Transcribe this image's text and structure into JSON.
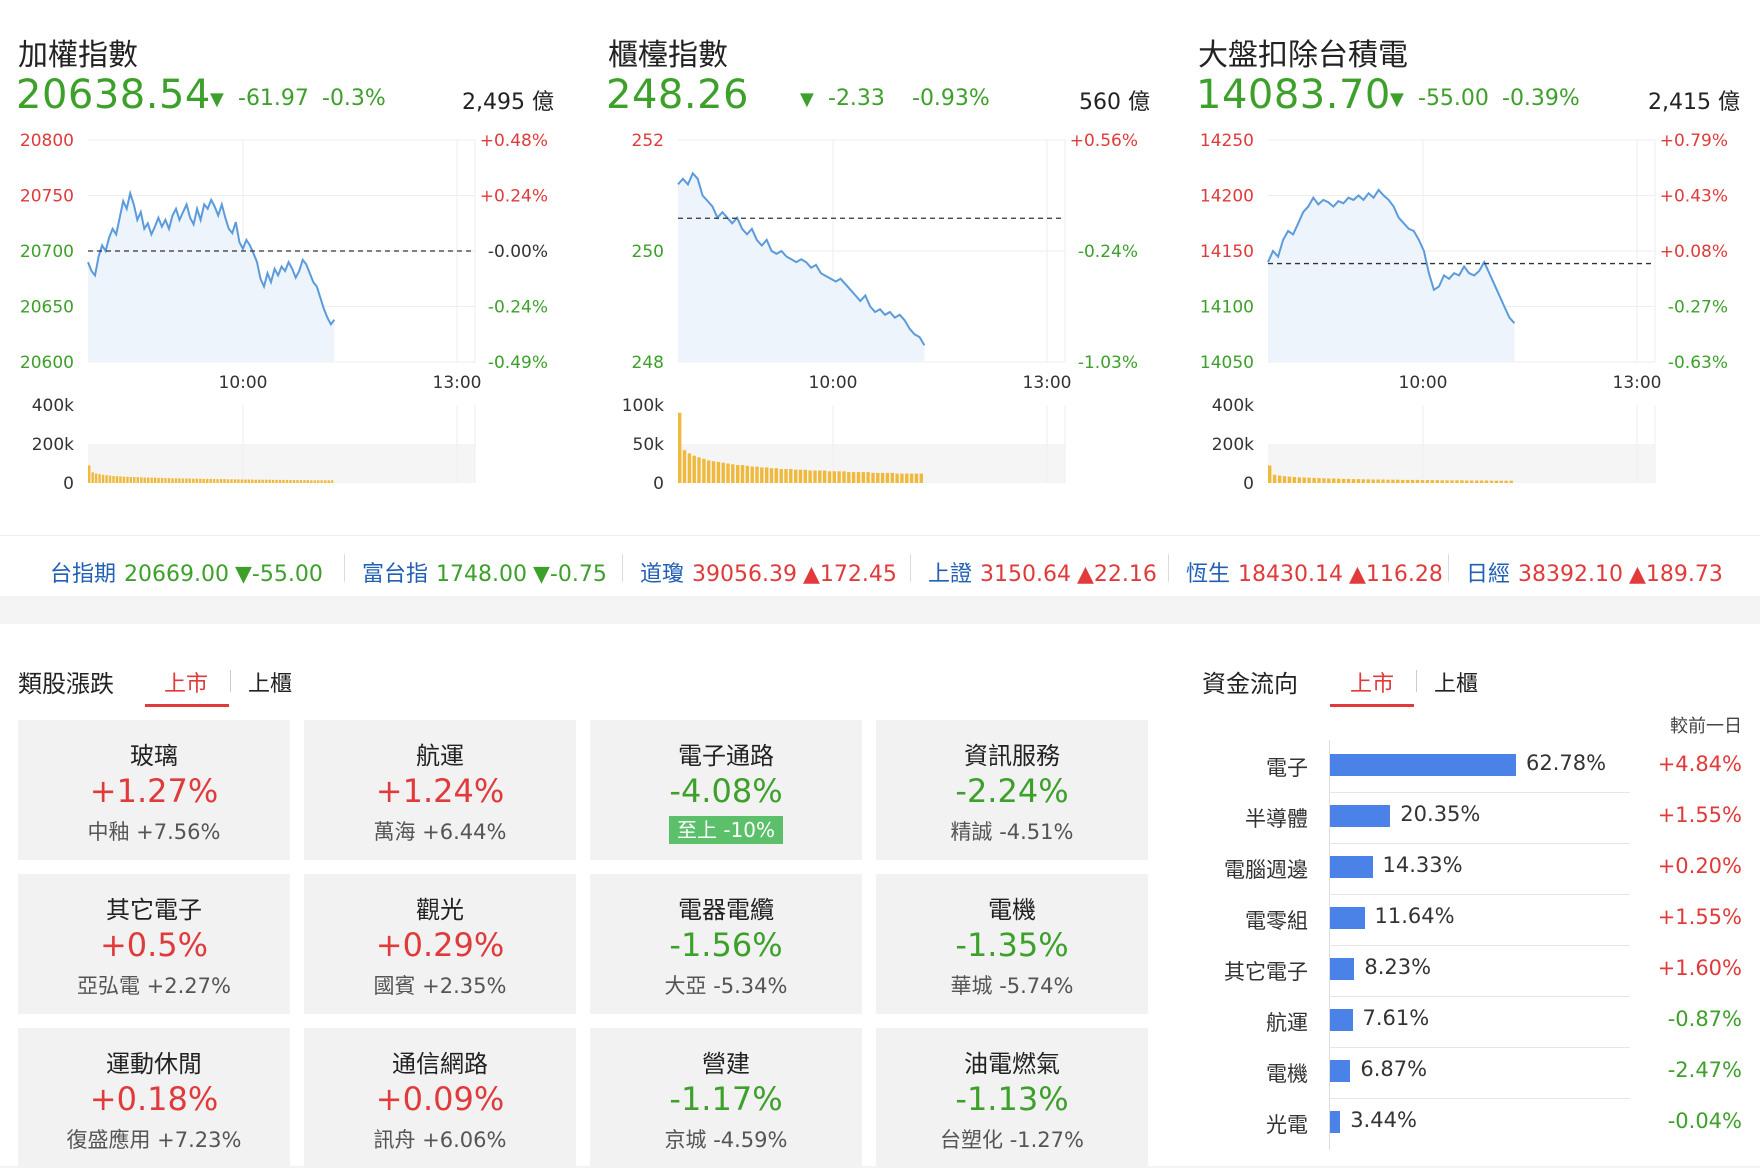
{
  "panels": [
    {
      "title": "加權指數",
      "value": "20638.54",
      "change": "-61.97",
      "pct": "-0.3%",
      "volume": "2,495 億",
      "y_labels": [
        "20800",
        "20750",
        "20700",
        "20650",
        "20600"
      ],
      "pct_labels": [
        "+0.48%",
        "+0.24%",
        "-0.00%",
        "-0.24%",
        "-0.49%"
      ],
      "time_labels": [
        "10:00",
        "13:00"
      ],
      "vol_labels": [
        "400k",
        "200k",
        "0"
      ],
      "chart_data": {
        "type": "line",
        "ylim": [
          20600,
          20800
        ],
        "prev_close": 20700,
        "vol_max": 400,
        "values": [
          20690,
          20682,
          20678,
          20695,
          20705,
          20700,
          20712,
          20720,
          20715,
          20730,
          20745,
          20738,
          20752,
          20742,
          20728,
          20735,
          20720,
          20725,
          20715,
          20722,
          20730,
          20722,
          20728,
          20720,
          20732,
          20738,
          20728,
          20735,
          20742,
          20730,
          20724,
          20738,
          20728,
          20742,
          20738,
          20746,
          20740,
          20732,
          20742,
          20730,
          20720,
          20716,
          20726,
          20708,
          20702,
          20710,
          20705,
          20698,
          20690,
          20675,
          20668,
          20680,
          20672,
          20684,
          20678,
          20686,
          20682,
          20690,
          20684,
          20676,
          20682,
          20692,
          20688,
          20680,
          20672,
          20668,
          20658,
          20648,
          20640,
          20634,
          20638
        ],
        "volumes": [
          90,
          55,
          48,
          45,
          42,
          40,
          38,
          36,
          35,
          34,
          33,
          32,
          31,
          30,
          30,
          29,
          28,
          28,
          27,
          27,
          26,
          26,
          25,
          25,
          24,
          24,
          24,
          23,
          23,
          23,
          22,
          22,
          22,
          21,
          21,
          21,
          20,
          20,
          20,
          20,
          19,
          19,
          19,
          19,
          18,
          18,
          18,
          18,
          17,
          17,
          17,
          17,
          17,
          16,
          16,
          16,
          16,
          16,
          15,
          15,
          15,
          15,
          15,
          15,
          14,
          14,
          14,
          14,
          14,
          14,
          14
        ]
      }
    },
    {
      "title": "櫃檯指數",
      "value": "248.26",
      "change": "-2.33",
      "pct": "-0.93%",
      "volume": "560 億",
      "y_labels": [
        "252",
        "250",
        "248"
      ],
      "pct_labels": [
        "+0.56%",
        "-0.24%",
        "-1.03%"
      ],
      "time_labels": [
        "10:00",
        "13:00"
      ],
      "vol_labels": [
        "100k",
        "50k",
        "0"
      ],
      "chart_data": {
        "type": "line",
        "ylim": [
          248,
          252
        ],
        "prev_close": 250.59,
        "vol_max": 100,
        "values": [
          251.2,
          251.3,
          251.2,
          251.4,
          251.3,
          251.0,
          250.9,
          250.8,
          250.6,
          250.7,
          250.6,
          250.5,
          250.6,
          250.4,
          250.3,
          250.4,
          250.2,
          250.1,
          250.2,
          250.0,
          249.95,
          250.0,
          249.9,
          249.85,
          249.8,
          249.85,
          249.8,
          249.7,
          249.75,
          249.6,
          249.55,
          249.5,
          249.45,
          249.5,
          249.4,
          249.3,
          249.2,
          249.1,
          249.2,
          249.0,
          248.9,
          248.95,
          248.85,
          248.9,
          248.8,
          248.85,
          248.75,
          248.6,
          248.5,
          248.45,
          248.3
        ],
        "volumes": [
          90,
          42,
          38,
          35,
          33,
          31,
          29,
          28,
          27,
          26,
          25,
          24,
          23,
          23,
          22,
          21,
          21,
          20,
          20,
          19,
          19,
          18,
          18,
          18,
          17,
          17,
          17,
          16,
          16,
          16,
          16,
          15,
          15,
          15,
          15,
          14,
          14,
          14,
          14,
          14,
          13,
          13,
          13,
          13,
          13,
          12,
          12,
          12,
          12,
          12,
          12
        ]
      }
    },
    {
      "title": "大盤扣除台積電",
      "value": "14083.70",
      "change": "-55.00",
      "pct": "-0.39%",
      "volume": "2,415 億",
      "y_labels": [
        "14250",
        "14200",
        "14150",
        "14100",
        "14050"
      ],
      "pct_labels": [
        "+0.79%",
        "+0.43%",
        "+0.08%",
        "-0.27%",
        "-0.63%"
      ],
      "time_labels": [
        "10:00",
        "13:00"
      ],
      "vol_labels": [
        "400k",
        "200k",
        "0"
      ],
      "chart_data": {
        "type": "line",
        "ylim": [
          14050,
          14250
        ],
        "prev_close": 14138.7,
        "vol_max": 400,
        "values": [
          14140,
          14150,
          14145,
          14160,
          14168,
          14165,
          14175,
          14185,
          14190,
          14198,
          14192,
          14196,
          14194,
          14190,
          14195,
          14193,
          14198,
          14196,
          14200,
          14196,
          14202,
          14198,
          14205,
          14200,
          14196,
          14190,
          14180,
          14175,
          14170,
          14168,
          14160,
          14150,
          14130,
          14115,
          14118,
          14128,
          14125,
          14130,
          14128,
          14136,
          14130,
          14128,
          14132,
          14140,
          14130,
          14120,
          14110,
          14100,
          14090,
          14085
        ],
        "volumes": [
          90,
          42,
          38,
          35,
          33,
          31,
          29,
          28,
          27,
          26,
          25,
          24,
          23,
          23,
          22,
          21,
          21,
          20,
          20,
          19,
          19,
          18,
          18,
          18,
          17,
          17,
          17,
          16,
          16,
          16,
          16,
          15,
          15,
          15,
          15,
          14,
          14,
          14,
          14,
          14,
          13,
          13,
          13,
          13,
          13,
          12,
          12,
          12,
          12,
          12
        ]
      }
    }
  ],
  "ticker": [
    {
      "name": "台指期",
      "value": "20669.00",
      "change": "▼-55.00",
      "dir": "dn"
    },
    {
      "name": "富台指",
      "value": "1748.00",
      "change": "▼-0.75",
      "dir": "dn"
    },
    {
      "name": "道瓊",
      "value": "39056.39",
      "change": "▲172.45",
      "dir": "up"
    },
    {
      "name": "上證",
      "value": "3150.64",
      "change": "▲22.16",
      "dir": "up"
    },
    {
      "name": "恆生",
      "value": "18430.14",
      "change": "▲116.28",
      "dir": "up"
    },
    {
      "name": "日經",
      "value": "38392.10",
      "change": "▲189.73",
      "dir": "up"
    }
  ],
  "sector": {
    "title": "類股漲跌",
    "tabs": [
      "上市",
      "上櫃"
    ],
    "cells": [
      {
        "name": "玻璃",
        "pct": "+1.27%",
        "dir": "up",
        "sub": "中釉 +7.56%"
      },
      {
        "name": "航運",
        "pct": "+1.24%",
        "dir": "up",
        "sub": "萬海 +6.44%"
      },
      {
        "name": "電子通路",
        "pct": "-4.08%",
        "dir": "dn",
        "badge": "至上 -10%"
      },
      {
        "name": "資訊服務",
        "pct": "-2.24%",
        "dir": "dn",
        "sub": "精誠 -4.51%"
      },
      {
        "name": "其它電子",
        "pct": "+0.5%",
        "dir": "up",
        "sub": "亞弘電 +2.27%"
      },
      {
        "name": "觀光",
        "pct": "+0.29%",
        "dir": "up",
        "sub": "國賓 +2.35%"
      },
      {
        "name": "電器電纜",
        "pct": "-1.56%",
        "dir": "dn",
        "sub": "大亞 -5.34%"
      },
      {
        "name": "電機",
        "pct": "-1.35%",
        "dir": "dn",
        "sub": "華城 -5.74%"
      },
      {
        "name": "運動休閒",
        "pct": "+0.18%",
        "dir": "up",
        "sub": "復盛應用 +7.23%"
      },
      {
        "name": "通信網路",
        "pct": "+0.09%",
        "dir": "up",
        "sub": "訊舟 +6.06%"
      },
      {
        "name": "營建",
        "pct": "-1.17%",
        "dir": "dn",
        "sub": "京城 -4.59%"
      },
      {
        "name": "油電燃氣",
        "pct": "-1.13%",
        "dir": "dn",
        "sub": "台塑化 -1.27%"
      }
    ]
  },
  "fund_flow": {
    "title": "資金流向",
    "tabs": [
      "上市",
      "上櫃"
    ],
    "header": "較前一日",
    "chart_data": {
      "type": "bar",
      "xlim": [
        0,
        62.78
      ],
      "rows": [
        {
          "name": "電子",
          "value": 62.78,
          "label": "62.78%",
          "change": "+4.84%",
          "dir": "up"
        },
        {
          "name": "半導體",
          "value": 20.35,
          "label": "20.35%",
          "change": "+1.55%",
          "dir": "up"
        },
        {
          "name": "電腦週邊",
          "value": 14.33,
          "label": "14.33%",
          "change": "+0.20%",
          "dir": "up"
        },
        {
          "name": "電零組",
          "value": 11.64,
          "label": "11.64%",
          "change": "+1.55%",
          "dir": "up"
        },
        {
          "name": "其它電子",
          "value": 8.23,
          "label": "8.23%",
          "change": "+1.60%",
          "dir": "up"
        },
        {
          "name": "航運",
          "value": 7.61,
          "label": "7.61%",
          "change": "-0.87%",
          "dir": "dn"
        },
        {
          "name": "電機",
          "value": 6.87,
          "label": "6.87%",
          "change": "-2.47%",
          "dir": "dn"
        },
        {
          "name": "光電",
          "value": 3.44,
          "label": "3.44%",
          "change": "-0.04%",
          "dir": "dn"
        }
      ]
    }
  },
  "colors": {
    "up": "#e03a3a",
    "down": "#3ca02a",
    "line": "#5b9bdc",
    "fill": "#edf4fb",
    "volume": "#f0b93a",
    "bar": "#4a82e8"
  }
}
